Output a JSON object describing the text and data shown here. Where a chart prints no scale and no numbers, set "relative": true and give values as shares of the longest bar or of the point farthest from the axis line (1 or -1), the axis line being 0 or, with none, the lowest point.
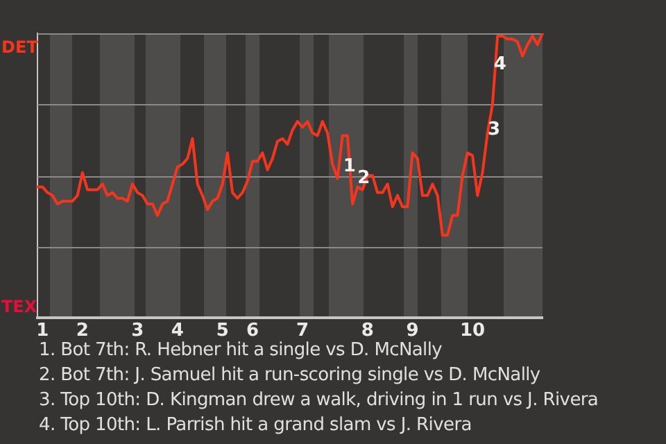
{
  "chart_data": {
    "type": "line",
    "relative": true,
    "categories": [
      null,
      "1",
      null,
      null,
      null,
      null,
      null,
      null,
      null,
      "2",
      null,
      null,
      null,
      null,
      null,
      null,
      null,
      null,
      null,
      null,
      "3",
      null,
      null,
      null,
      null,
      null,
      null,
      null,
      "4",
      null,
      null,
      null,
      null,
      null,
      null,
      null,
      null,
      "5",
      null,
      null,
      null,
      null,
      null,
      "6",
      null,
      null,
      null,
      null,
      null,
      null,
      null,
      null,
      null,
      "7",
      null,
      null,
      null,
      null,
      null,
      null,
      null,
      null,
      null,
      null,
      null,
      null,
      "8",
      null,
      null,
      null,
      null,
      null,
      null,
      null,
      null,
      "9",
      null,
      null,
      null,
      null,
      null,
      null,
      null,
      null,
      null,
      null,
      null,
      "10",
      null,
      null,
      null,
      null,
      null,
      null,
      null,
      null,
      null,
      null,
      null,
      null,
      null,
      null
    ],
    "series": [
      {
        "color": "#f5361e",
        "values": [
          0.46,
          0.46,
          0.44,
          0.43,
          0.4,
          0.41,
          0.41,
          0.41,
          0.43,
          0.51,
          0.45,
          0.45,
          0.45,
          0.47,
          0.43,
          0.44,
          0.42,
          0.42,
          0.41,
          0.47,
          0.44,
          0.43,
          0.4,
          0.4,
          0.36,
          0.4,
          0.41,
          0.47,
          0.53,
          0.54,
          0.56,
          0.63,
          0.47,
          0.43,
          0.38,
          0.41,
          0.42,
          0.47,
          0.58,
          0.44,
          0.42,
          0.44,
          0.48,
          0.55,
          0.55,
          0.58,
          0.52,
          0.56,
          0.62,
          0.63,
          0.61,
          0.66,
          0.69,
          0.67,
          0.69,
          0.65,
          0.64,
          0.69,
          0.65,
          0.54,
          0.49,
          0.64,
          0.64,
          0.4,
          0.46,
          0.45,
          0.5,
          0.5,
          0.44,
          0.44,
          0.47,
          0.39,
          0.43,
          0.39,
          0.39,
          0.58,
          0.56,
          0.43,
          0.43,
          0.47,
          0.43,
          0.29,
          0.29,
          0.36,
          0.36,
          0.5,
          0.58,
          0.57,
          0.43,
          0.51,
          0.65,
          0.75,
          0.99,
          0.99,
          0.98,
          0.98,
          0.97,
          0.92,
          0.96,
          0.99,
          0.96,
          1
        ]
      }
    ],
    "grid": "y",
    "legend": false,
    "marker": "none",
    "line_style": "solid",
    "annotations": [
      {
        "text": "1",
        "y": 0.53
      },
      {
        "text": "2",
        "y": 0.49
      },
      {
        "text": "3",
        "y": 0.66
      },
      {
        "text": "4",
        "y": 0.89
      },
      "DET",
      "TEX",
      "1. Bot 7th: R. Hebner hit a single vs D. McNally",
      "2. Bot 7th: J. Samuel hit a run-scoring single vs D. McNally",
      "3. Top 10th: D. Kingman drew a walk, driving in 1 run vs J. Rivera",
      "4. Top 10th: L. Parrish hit a grand slam vs J. Rivera"
    ]
  }
}
